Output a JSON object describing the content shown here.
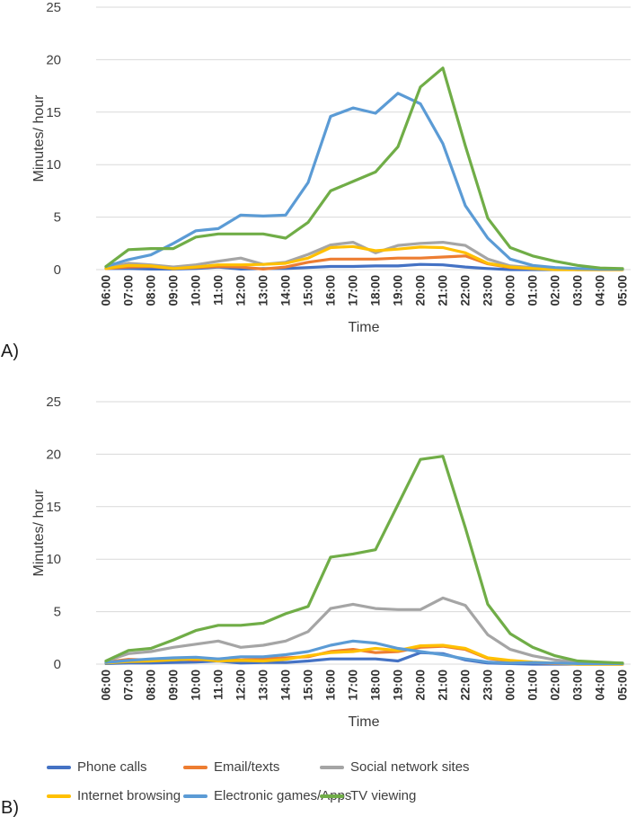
{
  "figure": {
    "xlabel": "Time",
    "ylabel": "Minutes/ hour",
    "panel_a_label": "A)",
    "panel_b_label": "B)"
  },
  "chart_data": [
    {
      "type": "line",
      "panel_label": "A)",
      "title": "",
      "xlabel": "Time",
      "ylabel": "Minutes/ hour",
      "ylim": [
        0,
        25
      ],
      "yticks": [
        0,
        5,
        10,
        15,
        20,
        25
      ],
      "grid": true,
      "legend_position": "below-figure",
      "categories": [
        "06:00",
        "07:00",
        "08:00",
        "09:00",
        "10:00",
        "11:00",
        "12:00",
        "13:00",
        "14:00",
        "15:00",
        "16:00",
        "17:00",
        "18:00",
        "19:00",
        "20:00",
        "21:00",
        "22:00",
        "23:00",
        "00:00",
        "01:00",
        "02:00",
        "03:00",
        "04:00",
        "05:00"
      ],
      "series": [
        {
          "name": "Phone calls",
          "color": "#4472C4",
          "values": [
            0.1,
            0.1,
            0.05,
            0.05,
            0.1,
            0.25,
            0.05,
            0.1,
            0.1,
            0.2,
            0.3,
            0.3,
            0.35,
            0.35,
            0.5,
            0.45,
            0.25,
            0.1,
            0,
            0,
            0,
            0,
            0,
            0
          ]
        },
        {
          "name": "Email/texts",
          "color": "#ED7D31",
          "values": [
            0.1,
            0.25,
            0.3,
            0.1,
            0.2,
            0.3,
            0.25,
            0.05,
            0.25,
            0.7,
            1.0,
            1.0,
            1.0,
            1.1,
            1.1,
            1.2,
            1.3,
            0.55,
            0.2,
            0.1,
            0.05,
            0,
            0,
            0
          ]
        },
        {
          "name": "Social network sites",
          "color": "#A5A5A5",
          "values": [
            0.2,
            0.6,
            0.45,
            0.25,
            0.45,
            0.8,
            1.1,
            0.5,
            0.7,
            1.45,
            2.35,
            2.6,
            1.6,
            2.3,
            2.5,
            2.6,
            2.3,
            1.0,
            0.35,
            0.2,
            0.1,
            0.05,
            0,
            0
          ]
        },
        {
          "name": "Internet browsing",
          "color": "#FFC000",
          "values": [
            0.1,
            0.4,
            0.35,
            0.1,
            0.25,
            0.45,
            0.45,
            0.5,
            0.6,
            1.1,
            2.1,
            2.2,
            1.8,
            1.95,
            2.15,
            2.1,
            1.6,
            0.6,
            0.25,
            0.1,
            0,
            0,
            0,
            0
          ]
        },
        {
          "name": "Electronic games/Apps",
          "color": "#5B9BD5",
          "values": [
            0.3,
            0.95,
            1.4,
            2.5,
            3.7,
            3.9,
            5.2,
            5.1,
            5.2,
            8.3,
            14.6,
            15.4,
            14.9,
            16.8,
            15.8,
            12.0,
            6.1,
            3.0,
            1.0,
            0.4,
            0.2,
            0.1,
            0.05,
            0.05
          ]
        },
        {
          "name": "TV viewing",
          "color": "#70AD47",
          "values": [
            0.3,
            1.9,
            2.0,
            2.0,
            3.1,
            3.4,
            3.4,
            3.4,
            3.0,
            4.5,
            7.5,
            8.4,
            9.3,
            11.7,
            17.4,
            19.2,
            11.8,
            4.9,
            2.1,
            1.3,
            0.8,
            0.4,
            0.15,
            0.1
          ]
        }
      ]
    },
    {
      "type": "line",
      "panel_label": "B)",
      "title": "",
      "xlabel": "Time",
      "ylabel": "Minutes/ hour",
      "ylim": [
        0,
        25
      ],
      "yticks": [
        0,
        5,
        10,
        15,
        20,
        25
      ],
      "grid": true,
      "legend_position": "below-figure",
      "categories": [
        "06:00",
        "07:00",
        "08:00",
        "09:00",
        "10:00",
        "11:00",
        "12:00",
        "13:00",
        "14:00",
        "15:00",
        "16:00",
        "17:00",
        "18:00",
        "19:00",
        "20:00",
        "21:00",
        "22:00",
        "23:00",
        "00:00",
        "01:00",
        "02:00",
        "03:00",
        "04:00",
        "05:00"
      ],
      "series": [
        {
          "name": "Phone calls",
          "color": "#4472C4",
          "values": [
            0.05,
            0.1,
            0.1,
            0.15,
            0.2,
            0.3,
            0.1,
            0.15,
            0.15,
            0.3,
            0.5,
            0.5,
            0.5,
            0.3,
            1.1,
            1.0,
            0.4,
            0.1,
            0.05,
            0,
            0,
            0,
            0,
            0
          ]
        },
        {
          "name": "Email/texts",
          "color": "#ED7D31",
          "values": [
            0.2,
            0.45,
            0.4,
            0.5,
            0.4,
            0.5,
            0.4,
            0.5,
            0.6,
            0.7,
            1.2,
            1.4,
            1.1,
            1.2,
            1.6,
            1.7,
            1.4,
            0.55,
            0.3,
            0.15,
            0.05,
            0,
            0,
            0
          ]
        },
        {
          "name": "Social network sites",
          "color": "#A5A5A5",
          "values": [
            0.3,
            1.0,
            1.2,
            1.6,
            1.9,
            2.2,
            1.6,
            1.8,
            2.2,
            3.1,
            5.3,
            5.7,
            5.3,
            5.2,
            5.2,
            6.3,
            5.6,
            2.8,
            1.4,
            0.8,
            0.4,
            0.2,
            0.15,
            0.1
          ]
        },
        {
          "name": "Internet browsing",
          "color": "#FFC000",
          "values": [
            0.1,
            0.25,
            0.3,
            0.4,
            0.5,
            0.3,
            0.35,
            0.3,
            0.45,
            0.8,
            1.1,
            1.2,
            1.5,
            1.3,
            1.75,
            1.8,
            1.5,
            0.6,
            0.35,
            0.2,
            0.1,
            0,
            0,
            0
          ]
        },
        {
          "name": "Electronic games/Apps",
          "color": "#5B9BD5",
          "values": [
            0.15,
            0.35,
            0.5,
            0.6,
            0.65,
            0.5,
            0.7,
            0.7,
            0.9,
            1.2,
            1.8,
            2.2,
            2.0,
            1.5,
            1.2,
            0.9,
            0.5,
            0.2,
            0.1,
            0.15,
            0.1,
            0.05,
            0.05,
            0.05
          ]
        },
        {
          "name": "TV viewing",
          "color": "#70AD47",
          "values": [
            0.3,
            1.3,
            1.5,
            2.3,
            3.2,
            3.7,
            3.7,
            3.9,
            4.8,
            5.5,
            10.2,
            10.5,
            10.9,
            15.2,
            19.5,
            19.8,
            13.0,
            5.7,
            2.9,
            1.6,
            0.8,
            0.3,
            0.2,
            0.1
          ]
        }
      ]
    }
  ],
  "legend": {
    "items": [
      {
        "label": "Phone calls",
        "color": "#4472C4"
      },
      {
        "label": "Email/texts",
        "color": "#ED7D31"
      },
      {
        "label": "Social network sites",
        "color": "#A5A5A5"
      },
      {
        "label": "Internet browsing",
        "color": "#FFC000"
      },
      {
        "label": "Electronic games/Apps",
        "color": "#5B9BD5"
      },
      {
        "label": "TV viewing",
        "color": "#70AD47"
      }
    ]
  }
}
